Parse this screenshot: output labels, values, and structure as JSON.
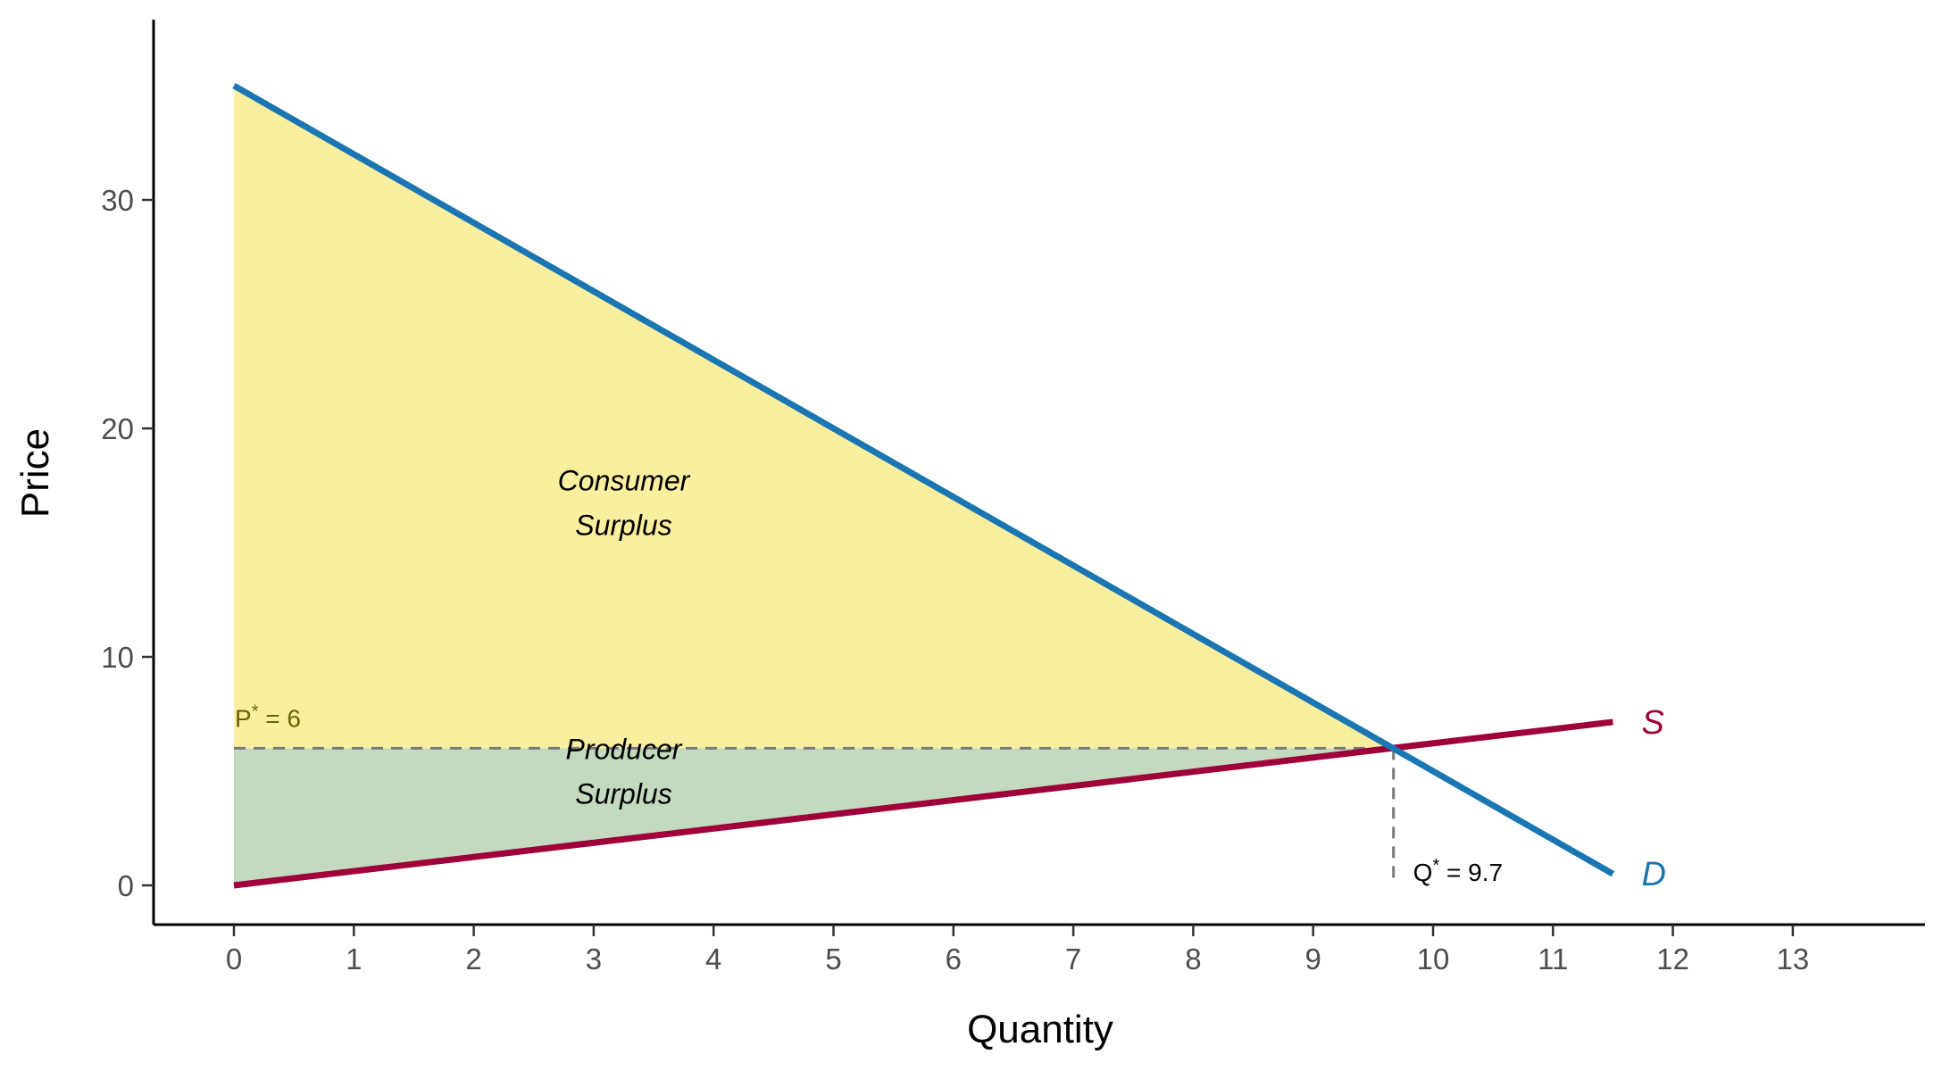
{
  "chart_data": {
    "type": "line",
    "xlabel": "Quantity",
    "ylabel": "Price",
    "xlim": [
      0,
      14
    ],
    "ylim": [
      0,
      35
    ],
    "x_ticks": [
      "0",
      "1",
      "2",
      "3",
      "4",
      "5",
      "6",
      "7",
      "8",
      "9",
      "10",
      "11",
      "12",
      "13"
    ],
    "y_ticks": [
      "0",
      "10",
      "20",
      "30"
    ],
    "grid": false,
    "series": [
      {
        "name": "D",
        "color": "#1a75b3",
        "points": [
          [
            0,
            35
          ],
          [
            11.5,
            0.5
          ]
        ]
      },
      {
        "name": "S",
        "color": "#a0003a",
        "points": [
          [
            0,
            0
          ],
          [
            11.5,
            7.15
          ]
        ]
      }
    ],
    "regions": [
      {
        "name": "consumer_surplus",
        "label_line1": "Consumer",
        "label_line2": "Surplus",
        "color": "#f7e76a",
        "opacity": 0.65,
        "polygon": [
          [
            0,
            35
          ],
          [
            9.67,
            6
          ],
          [
            0,
            6
          ]
        ]
      },
      {
        "name": "producer_surplus",
        "label_line1": "Producer",
        "label_line2": "Surplus",
        "color": "#98bf91",
        "opacity": 0.58,
        "polygon": [
          [
            0,
            6
          ],
          [
            9.67,
            6
          ],
          [
            0,
            0
          ]
        ]
      }
    ],
    "equilibrium": {
      "q": 9.67,
      "p": 6,
      "p_label_main": "P",
      "p_label_sup": "*",
      "p_label_rest": " = 6",
      "q_label_main": "Q",
      "q_label_sup": "*",
      "q_label_rest": " = 9.7"
    },
    "region_label_positions": {
      "consumer_surplus": [
        3.25,
        16.5
      ],
      "producer_surplus": [
        3.25,
        4.75
      ]
    }
  }
}
